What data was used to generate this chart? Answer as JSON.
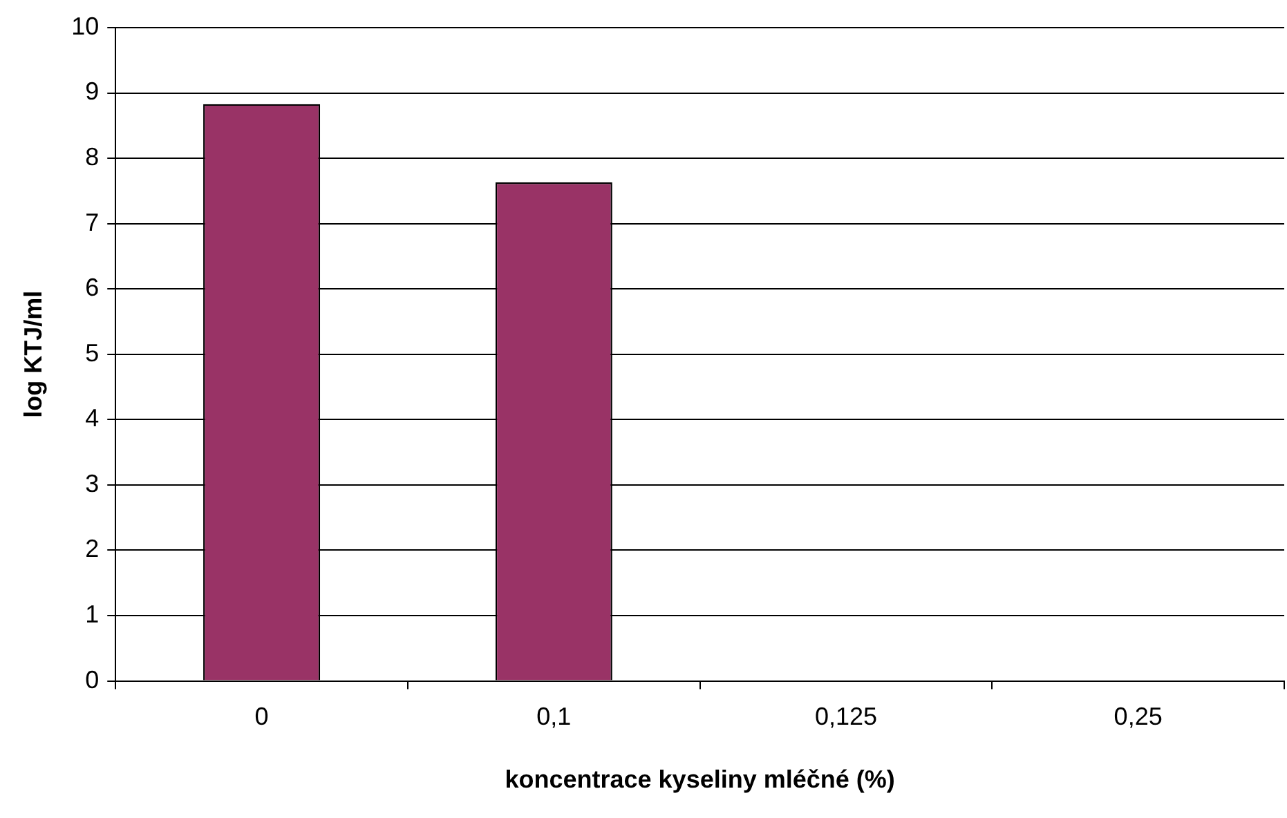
{
  "chart_data": {
    "type": "bar",
    "xlabel": "koncentrace kyseliny mléčné (%)",
    "ylabel": "log KTJ/ml",
    "categories": [
      "0",
      "0,1",
      "0,125",
      "0,25"
    ],
    "values": [
      8.83,
      7.63,
      0,
      0
    ],
    "color": "#993366",
    "ylim": [
      0,
      10
    ],
    "yticks": [
      0,
      1,
      2,
      3,
      4,
      5,
      6,
      7,
      8,
      9,
      10
    ],
    "grid": "y",
    "legend": false
  }
}
